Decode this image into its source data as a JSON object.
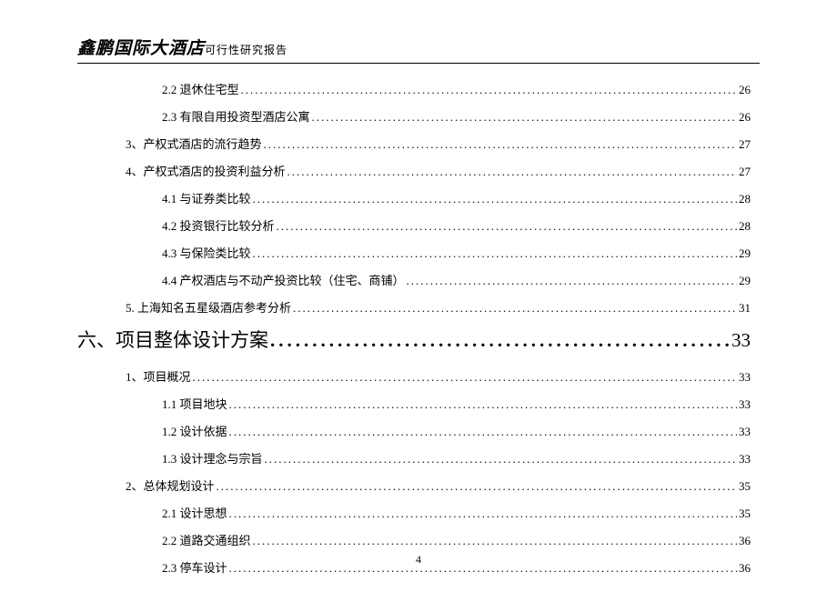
{
  "header": {
    "title_main": "鑫鹏国际大酒店",
    "title_sub": "可行性研究报告"
  },
  "toc_entries": [
    {
      "level": "level-3",
      "label": "2.2 退休住宅型",
      "page": "26"
    },
    {
      "level": "level-3",
      "label": "2.3 有限自用投资型酒店公寓",
      "page": "26"
    },
    {
      "level": "level-2",
      "label": "3、产权式酒店的流行趋势",
      "page": "27"
    },
    {
      "level": "level-2",
      "label": "4、产权式酒店的投资利益分析",
      "page": "27"
    },
    {
      "level": "level-3",
      "label": "4.1 与证券类比较",
      "page": "28"
    },
    {
      "level": "level-3",
      "label": "4.2 投资银行比较分析",
      "page": "28"
    },
    {
      "level": "level-3",
      "label": "4.3 与保险类比较",
      "page": "29"
    },
    {
      "level": "level-3",
      "label": "4.4 产权酒店与不动产投资比较（住宅、商铺）",
      "page": "29"
    },
    {
      "level": "level-2",
      "label": "5. 上海知名五星级酒店参考分析",
      "page": "31"
    },
    {
      "level": "level-1-heading",
      "label": "六、项目整体设计方案",
      "page": "33"
    },
    {
      "level": "level-2",
      "label": "1、项目概况",
      "page": "33"
    },
    {
      "level": "level-3",
      "label": "1.1 项目地块",
      "page": "33"
    },
    {
      "level": "level-3",
      "label": "1.2 设计依据",
      "page": "33"
    },
    {
      "level": "level-3",
      "label": "1.3 设计理念与宗旨",
      "page": "33"
    },
    {
      "level": "level-2",
      "label": "2、总体规划设计",
      "page": "35"
    },
    {
      "level": "level-3",
      "label": "2.1 设计思想",
      "page": "35"
    },
    {
      "level": "level-3",
      "label": "2.2 道路交通组织",
      "page": "36"
    },
    {
      "level": "level-3",
      "label": "2.3 停车设计",
      "page": "36"
    }
  ],
  "page_number": "4"
}
